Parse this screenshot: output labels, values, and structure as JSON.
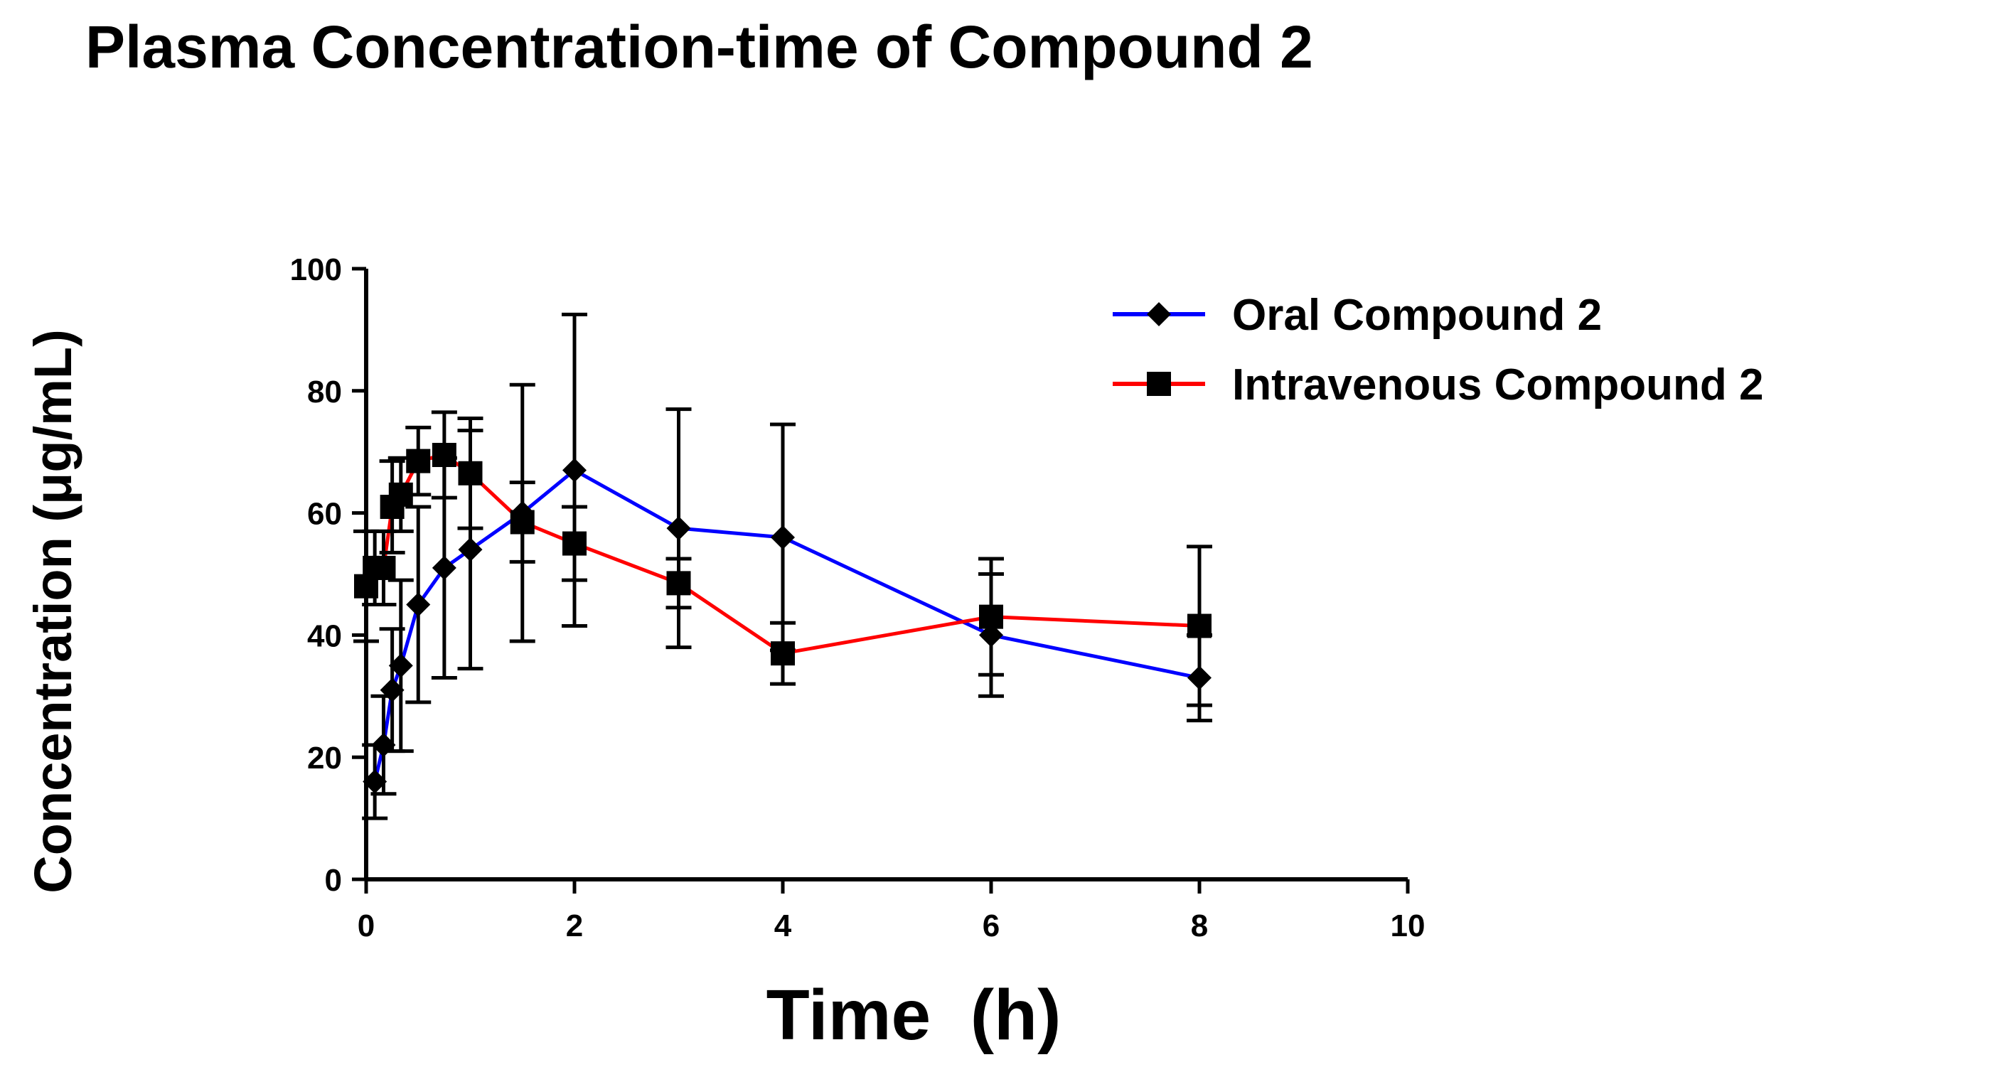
{
  "chart_data": {
    "type": "line",
    "title": "Plasma Concentration-time of Compound 2",
    "xlabel": "Time  (h)",
    "ylabel": "Concentration (μg/mL)",
    "xlim": [
      0,
      10
    ],
    "ylim": [
      0,
      100
    ],
    "xticks": [
      0,
      2,
      4,
      6,
      8,
      10
    ],
    "yticks": [
      0,
      20,
      40,
      60,
      80,
      100
    ],
    "grid": false,
    "legend_position": "top-right",
    "series": [
      {
        "name": "Oral Compound 2",
        "color": "#0000ff",
        "marker": "diamond",
        "x": [
          0.083,
          0.167,
          0.25,
          0.333,
          0.5,
          0.75,
          1,
          1.5,
          2,
          3,
          4,
          6,
          8
        ],
        "y": [
          16,
          22,
          31,
          35,
          45,
          51,
          54,
          60,
          67,
          57.5,
          56,
          40,
          33
        ],
        "err": [
          6,
          8,
          10,
          14,
          16,
          18,
          19.5,
          21,
          25.5,
          19.5,
          18.5,
          10,
          7
        ]
      },
      {
        "name": "Intravenous Compound 2",
        "color": "#ff0000",
        "marker": "square",
        "x": [
          0,
          0.083,
          0.167,
          0.25,
          0.333,
          0.5,
          0.75,
          1,
          1.5,
          2,
          3,
          4,
          6,
          8
        ],
        "y": [
          48,
          51,
          51,
          61,
          63,
          68.5,
          69.5,
          66.5,
          58.5,
          55,
          48.5,
          37,
          43,
          41.5
        ],
        "err": [
          9,
          6,
          6,
          7.5,
          6,
          5.5,
          7,
          9,
          6.5,
          6,
          4,
          5,
          9.5,
          13
        ]
      }
    ]
  }
}
